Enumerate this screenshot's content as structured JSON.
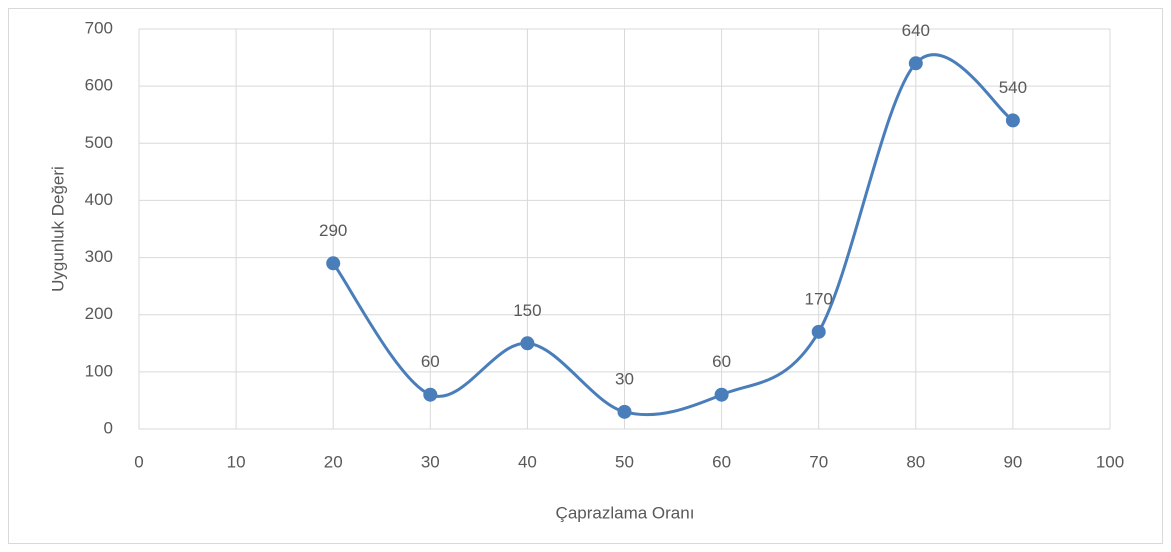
{
  "chart_data": {
    "type": "scatter",
    "smooth": true,
    "x_label": "Çaprazlama Oranı",
    "y_label": "Uygunluk Değeri",
    "x": [
      20,
      30,
      40,
      50,
      60,
      70,
      80,
      90
    ],
    "values": [
      290,
      60,
      150,
      30,
      60,
      170,
      640,
      540
    ],
    "color": "#4a7ebb",
    "xlim": [
      0,
      100
    ],
    "xticks": [
      0,
      10,
      20,
      30,
      40,
      50,
      60,
      70,
      80,
      90,
      100
    ],
    "ylim": [
      0,
      700
    ],
    "yticks": [
      0,
      100,
      200,
      300,
      400,
      500,
      600,
      700
    ],
    "grid": true,
    "data_labels": true
  }
}
